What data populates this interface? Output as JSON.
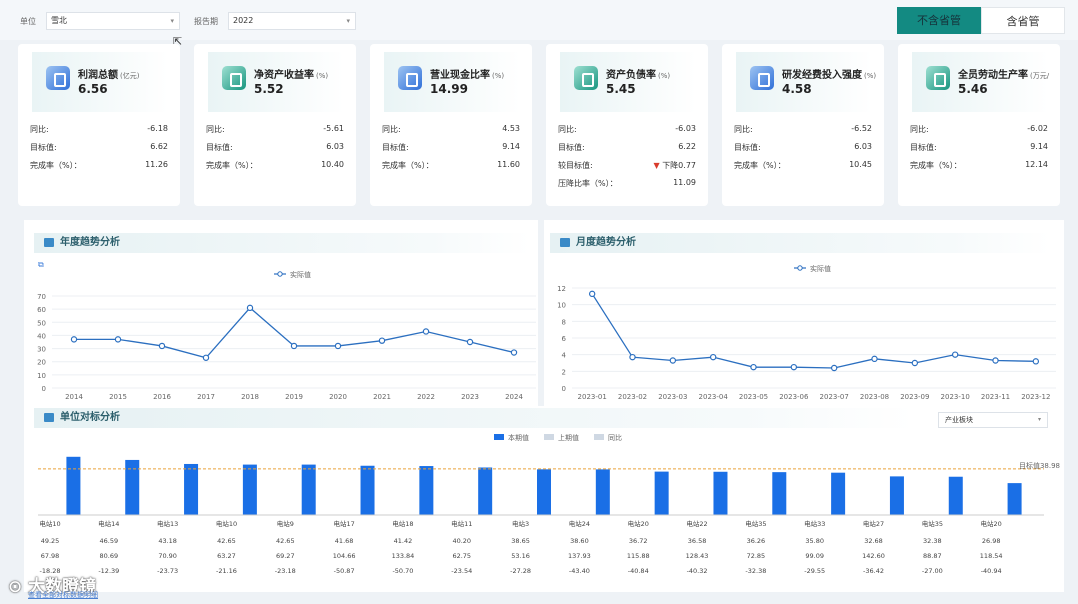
{
  "filters": {
    "unit_label": "单位",
    "unit_value": "雪北",
    "period_label": "报告期",
    "period_value": "2022"
  },
  "toggle": {
    "left": "不含省管",
    "right": "含省管"
  },
  "colors": {
    "accent": "#138a82",
    "bar": "#1a6fe6",
    "line": "#2b6fc0",
    "target": "#e9a23b",
    "down": "#d93b2c"
  },
  "cards": [
    {
      "title": "利润总额",
      "unit": "(亿元)",
      "value": "6.56",
      "icon": "finance-icon",
      "rows": [
        {
          "label": "同比:",
          "value": "-6.18"
        },
        {
          "label": "目标值:",
          "value": "6.62"
        },
        {
          "label": "完成率（%）：",
          "value": "11.26"
        }
      ]
    },
    {
      "title": "净资产收益率",
      "unit": "(%)",
      "value": "5.52",
      "icon": "finance-icon",
      "rows": [
        {
          "label": "同比:",
          "value": "-5.61"
        },
        {
          "label": "目标值:",
          "value": "6.03"
        },
        {
          "label": "完成率（%）：",
          "value": "10.40"
        }
      ]
    },
    {
      "title": "营业现金比率",
      "unit": "(%)",
      "value": "14.99",
      "icon": "finance-icon",
      "rows": [
        {
          "label": "同比:",
          "value": "4.53"
        },
        {
          "label": "目标值:",
          "value": "9.14"
        },
        {
          "label": "完成率（%）：",
          "value": "11.60"
        }
      ]
    },
    {
      "title": "资产负债率",
      "unit": "(%)",
      "value": "5.45",
      "icon": "finance-icon",
      "rows": [
        {
          "label": "同比:",
          "value": "-6.03"
        },
        {
          "label": "目标值:",
          "value": "6.22"
        },
        {
          "label": "较目标值:",
          "value": "下降0.77",
          "down": true
        },
        {
          "label": "压降比率（%）：",
          "value": "11.09"
        }
      ]
    },
    {
      "title": "研发经费投入强度",
      "unit": "(%)",
      "value": "4.58",
      "icon": "finance-icon",
      "rows": [
        {
          "label": "同比:",
          "value": "-6.52"
        },
        {
          "label": "目标值:",
          "value": "6.03"
        },
        {
          "label": "完成率（%）：",
          "value": "10.45"
        }
      ]
    },
    {
      "title": "全员劳动生产率",
      "unit": "(万元/",
      "value": "5.46",
      "icon": "finance-icon",
      "rows": [
        {
          "label": "同比:",
          "value": "-6.02"
        },
        {
          "label": "目标值:",
          "value": "9.14"
        },
        {
          "label": "完成率（%）：",
          "value": "12.14"
        }
      ]
    }
  ],
  "yearly": {
    "title": "年度趋势分析"
  },
  "monthly": {
    "title": "月度趋势分析"
  },
  "benchmark": {
    "title": "单位对标分析",
    "dropdown": "产业板块"
  },
  "chart_data": [
    {
      "type": "line",
      "series": [
        {
          "name": "实际值",
          "values": [
            37,
            37,
            32,
            23,
            61,
            32,
            32,
            36,
            43,
            35,
            27
          ]
        }
      ],
      "x": [
        "2014",
        "2015",
        "2016",
        "2017",
        "2018",
        "2019",
        "2020",
        "2021",
        "2022",
        "2023",
        "2024"
      ],
      "ylim": [
        0,
        70
      ],
      "yticks": [
        0,
        10,
        20,
        30,
        40,
        50,
        60,
        70
      ]
    },
    {
      "type": "line",
      "series": [
        {
          "name": "实际值",
          "values": [
            11.3,
            3.7,
            3.3,
            3.7,
            2.5,
            2.5,
            2.4,
            3.5,
            3,
            4,
            3.3,
            3.2
          ]
        }
      ],
      "x": [
        "2023-01",
        "2023-02",
        "2023-03",
        "2023-04",
        "2023-05",
        "2023-06",
        "2023-07",
        "2023-08",
        "2023-09",
        "2023-10",
        "2023-11",
        "2023-12"
      ],
      "ylim": [
        0,
        12
      ],
      "yticks": [
        0,
        2,
        4,
        6,
        8,
        10,
        12
      ]
    },
    {
      "type": "bar",
      "categories": [
        "电站10",
        "电站14",
        "电站13",
        "电站10",
        "电站9",
        "电站17",
        "电站18",
        "电站11",
        "电站3",
        "电站24",
        "电站20",
        "电站22",
        "电站35",
        "电站33",
        "电站27",
        "电站35",
        "电站20"
      ],
      "series": [
        {
          "name": "本期值",
          "values": [
            49.25,
            46.59,
            43.18,
            42.65,
            42.65,
            41.68,
            41.42,
            40.2,
            38.65,
            38.6,
            36.72,
            36.58,
            36.26,
            35.8,
            32.68,
            32.38,
            26.98
          ]
        },
        {
          "name": "上期值",
          "values": [
            67.98,
            80.69,
            70.9,
            63.27,
            69.27,
            104.66,
            133.84,
            62.75,
            53.16,
            137.93,
            115.88,
            128.43,
            72.85,
            99.09,
            142.6,
            88.87,
            118.54
          ]
        },
        {
          "name": "同比",
          "values": [
            -18.28,
            -12.39,
            -23.73,
            -21.16,
            -23.18,
            -50.87,
            -50.7,
            -23.54,
            -27.28,
            -43.4,
            -40.84,
            -40.32,
            -32.38,
            -29.55,
            -36.42,
            -27.0,
            -40.94
          ]
        }
      ],
      "target": {
        "label": "目标值38.98",
        "value": 38.98
      }
    }
  ]
}
